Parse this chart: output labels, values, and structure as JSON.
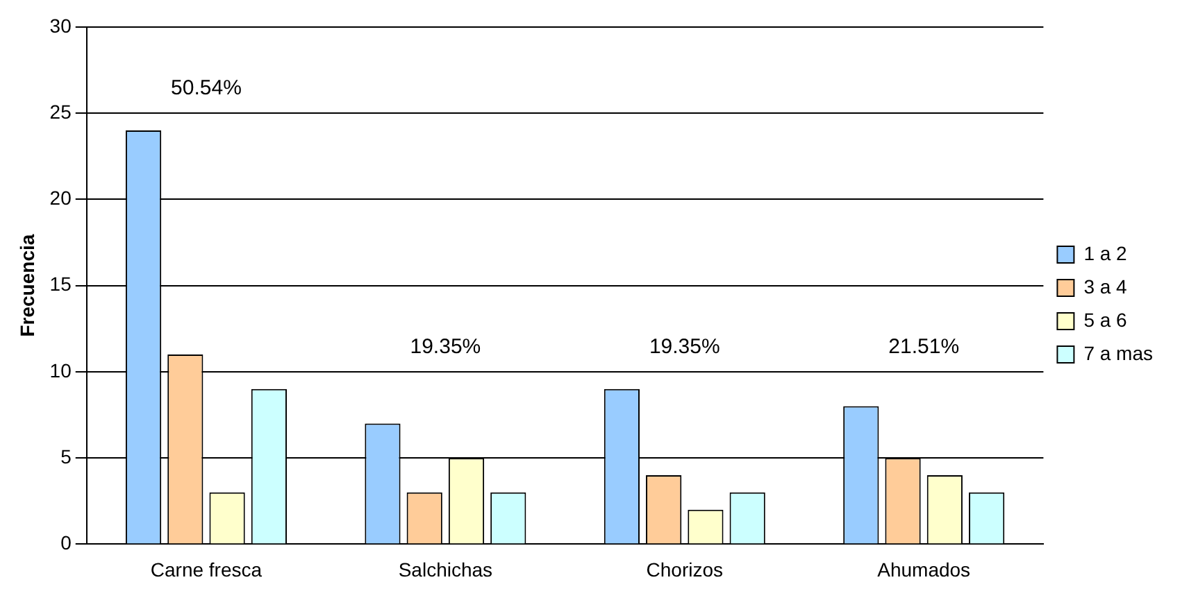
{
  "chart_data": {
    "type": "bar",
    "ylabel": "Frecuencia",
    "categories": [
      "Carne fresca",
      "Salchichas",
      "Chorizos",
      "Ahumados"
    ],
    "series": [
      {
        "name": "1 a 2",
        "color": "#99ccff",
        "values": [
          24,
          7,
          9,
          8
        ]
      },
      {
        "name": "3 a 4",
        "color": "#ffcc99",
        "values": [
          11,
          3,
          4,
          5
        ]
      },
      {
        "name": "5 a 6",
        "color": "#ffffcc",
        "values": [
          3,
          5,
          2,
          4
        ]
      },
      {
        "name": "7 a mas",
        "color": "#ccffff",
        "values": [
          9,
          3,
          3,
          3
        ]
      }
    ],
    "ylim": [
      0,
      30
    ],
    "yticks": [
      0,
      5,
      10,
      15,
      20,
      25,
      30
    ],
    "grid": "y",
    "legend": "right",
    "annotations": [
      "50.54%",
      "19.35%",
      "19.35%",
      "21.51%"
    ]
  }
}
